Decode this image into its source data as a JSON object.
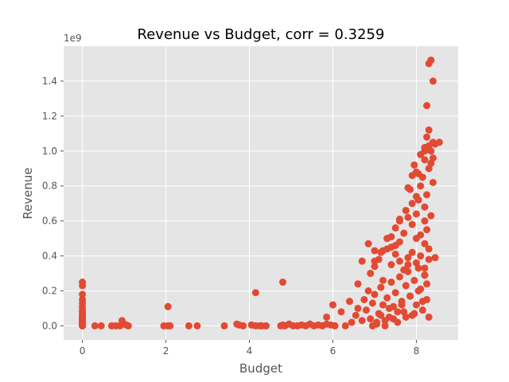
{
  "chart_data": {
    "type": "scatter",
    "title": "Revenue vs Budget, corr = 0.3259",
    "xlabel": "Budget",
    "ylabel": "Revenue",
    "y_offset_label": "1e9",
    "xlim": [
      -0.45,
      9.0
    ],
    "ylim": [
      -0.08,
      1.6
    ],
    "x_ticks": [
      0,
      2,
      4,
      6,
      8
    ],
    "y_ticks": [
      0.0,
      0.2,
      0.4,
      0.6,
      0.8,
      1.0,
      1.2,
      1.4
    ],
    "x_tick_labels": [
      "0",
      "2",
      "4",
      "6",
      "8"
    ],
    "y_tick_labels": [
      "0.0",
      "0.2",
      "0.4",
      "0.6",
      "0.8",
      "1.0",
      "1.2",
      "1.4"
    ],
    "grid": true,
    "style": "ggplot",
    "colors": {
      "background": "#e5e5e5",
      "grid": "#ffffff",
      "marker": "#e24a33"
    },
    "series": [
      {
        "x": [
          0,
          0,
          0,
          0,
          0,
          0,
          0,
          0,
          0,
          0,
          0,
          0,
          0,
          0,
          0,
          0,
          0,
          0,
          0,
          0,
          0,
          0,
          0.3,
          0.45,
          0.7,
          0.8,
          0.9,
          0.95,
          1.0,
          1.05,
          1.1,
          1.95,
          2.05,
          2.1,
          2.55,
          2.75,
          3.4,
          3.7,
          3.75,
          3.85,
          4.05,
          4.15,
          4.25,
          4.3,
          4.4,
          4.75,
          4.8,
          4.85,
          4.95,
          5.05,
          5.15,
          5.25,
          5.35,
          5.45,
          5.55,
          5.65,
          5.75,
          5.85,
          5.95,
          5.85,
          6.0,
          6.05,
          6.2,
          6.3,
          6.4,
          6.45,
          6.55,
          6.6,
          6.7,
          6.75,
          6.8,
          6.85,
          6.9,
          6.95,
          7.0,
          7.05,
          7.1,
          7.15,
          7.2,
          7.25,
          7.3,
          7.35,
          7.4,
          7.45,
          7.5,
          7.55,
          7.6,
          7.65,
          7.7,
          7.75,
          7.8,
          7.85,
          7.9,
          7.95,
          8.0,
          8.05,
          8.1,
          8.15,
          8.2,
          8.25,
          8.3,
          6.95,
          7.05,
          7.15,
          7.25,
          7.35,
          7.45,
          7.55,
          7.65,
          7.75,
          7.85,
          7.95,
          8.05,
          8.15,
          8.25,
          6.9,
          7.0,
          7.1,
          7.2,
          7.3,
          7.4,
          7.5,
          7.6,
          7.7,
          7.8,
          7.9,
          8.0,
          8.1,
          8.2,
          8.3,
          7.0,
          7.2,
          7.4,
          7.6,
          7.8,
          8.0,
          8.2,
          8.3,
          7.3,
          7.5,
          7.7,
          7.9,
          8.1,
          8.25,
          7.6,
          7.8,
          8.0,
          8.2,
          8.35,
          7.75,
          7.9,
          8.05,
          8.2,
          7.85,
          8.0,
          8.1,
          8.25,
          8.4,
          7.9,
          8.0,
          8.15,
          8.3,
          7.95,
          8.05,
          8.2,
          8.35,
          8.1,
          8.2,
          8.3,
          8.4,
          8.2,
          8.25,
          8.3,
          8.35,
          8.4,
          8.45,
          8.55,
          8.25,
          8.3,
          8.35,
          8.4,
          4.15,
          4.8,
          2.05,
          6.7,
          6.85,
          7.0,
          7.3,
          7.5,
          7.8,
          7.6,
          8.45,
          8.2,
          7.4,
          6.6,
          7.15
        ],
        "y": [
          0.25,
          0.23,
          0.18,
          0.15,
          0.13,
          0.11,
          0.09,
          0.08,
          0.07,
          0.06,
          0.05,
          0.045,
          0.04,
          0.035,
          0.03,
          0.025,
          0.02,
          0.015,
          0.01,
          0.005,
          0.0,
          0.0,
          0.0,
          0.0,
          0.0,
          0.0,
          0.0,
          0.03,
          0.01,
          0.005,
          0.0,
          0.0,
          0.0,
          0.0,
          0.0,
          0.0,
          0.0,
          0.01,
          0.005,
          0.0,
          0.005,
          0.0,
          0.0,
          0.0,
          0.0,
          0.0,
          0.005,
          0.0,
          0.01,
          0.0,
          0.0,
          0.005,
          0.0,
          0.01,
          0.0,
          0.005,
          0.0,
          0.01,
          0.005,
          0.05,
          0.12,
          0.0,
          0.08,
          0.0,
          0.14,
          0.02,
          0.06,
          0.1,
          0.03,
          0.15,
          0.09,
          0.2,
          0.04,
          0.13,
          0.18,
          0.01,
          0.07,
          0.22,
          0.12,
          0.0,
          0.16,
          0.05,
          0.25,
          0.11,
          0.19,
          0.02,
          0.28,
          0.14,
          0.08,
          0.23,
          0.31,
          0.17,
          0.06,
          0.26,
          0.12,
          0.33,
          0.21,
          0.09,
          0.29,
          0.15,
          0.05,
          0.0,
          0.02,
          0.06,
          0.03,
          0.1,
          0.04,
          0.08,
          0.12,
          0.05,
          0.17,
          0.07,
          0.2,
          0.14,
          0.24,
          0.3,
          0.34,
          0.38,
          0.26,
          0.44,
          0.35,
          0.41,
          0.37,
          0.32,
          0.39,
          0.42,
          0.36,
          0.4,
          0.33,
          0.38,
          0.37,
          0.43,
          0.45,
          0.48,
          0.35,
          0.5,
          0.47,
          0.44,
          0.5,
          0.56,
          0.53,
          0.58,
          0.52,
          0.55,
          0.6,
          0.62,
          0.64,
          0.6,
          0.63,
          0.66,
          0.7,
          0.72,
          0.68,
          0.78,
          0.74,
          0.8,
          0.75,
          0.82,
          0.86,
          0.88,
          0.85,
          0.9,
          0.92,
          0.87,
          0.95,
          0.93,
          0.98,
          1.0,
          1.03,
          1.05,
          1.02,
          1.08,
          1.12,
          1.0,
          0.96,
          1.04,
          1.05,
          1.26,
          1.5,
          1.52,
          1.4,
          0.19,
          0.25,
          0.11,
          0.37,
          0.47,
          0.43,
          0.5,
          0.46,
          0.79,
          0.61,
          0.39,
          0.29,
          0.51,
          0.24,
          0.42
        ]
      }
    ]
  }
}
